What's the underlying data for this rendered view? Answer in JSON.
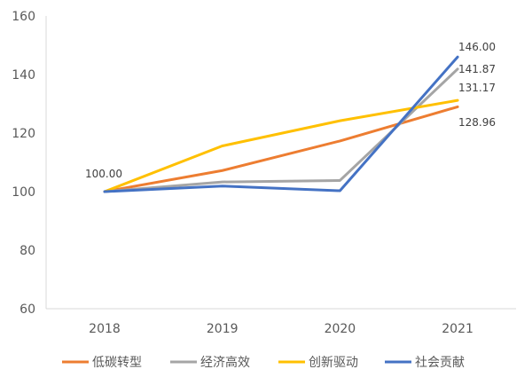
{
  "chart_data": {
    "type": "line",
    "title": "",
    "xlabel": "",
    "ylabel": "",
    "categories": [
      "2018",
      "2019",
      "2020",
      "2021"
    ],
    "ylim": [
      60,
      160
    ],
    "yticks": [
      "60",
      "80",
      "100",
      "120",
      "140",
      "160"
    ],
    "grid": false,
    "legend_position": "bottom",
    "series": [
      {
        "name": "低碳转型",
        "color": "#ED7D31",
        "values": [
          100.0,
          107.2,
          117.3,
          128.96
        ]
      },
      {
        "name": "经济高效",
        "color": "#A5A5A5",
        "values": [
          100.0,
          103.3,
          103.8,
          141.87
        ]
      },
      {
        "name": "创新驱动",
        "color": "#FFC000",
        "values": [
          100.0,
          115.6,
          124.2,
          131.17
        ]
      },
      {
        "name": "社会贡献",
        "color": "#4472C4",
        "values": [
          100.0,
          101.9,
          100.3,
          146.0
        ]
      }
    ],
    "data_labels": [
      {
        "text": "100.00"
      },
      {
        "text": "146.00"
      },
      {
        "text": "141.87"
      },
      {
        "text": "131.17"
      },
      {
        "text": "128.96"
      }
    ]
  }
}
